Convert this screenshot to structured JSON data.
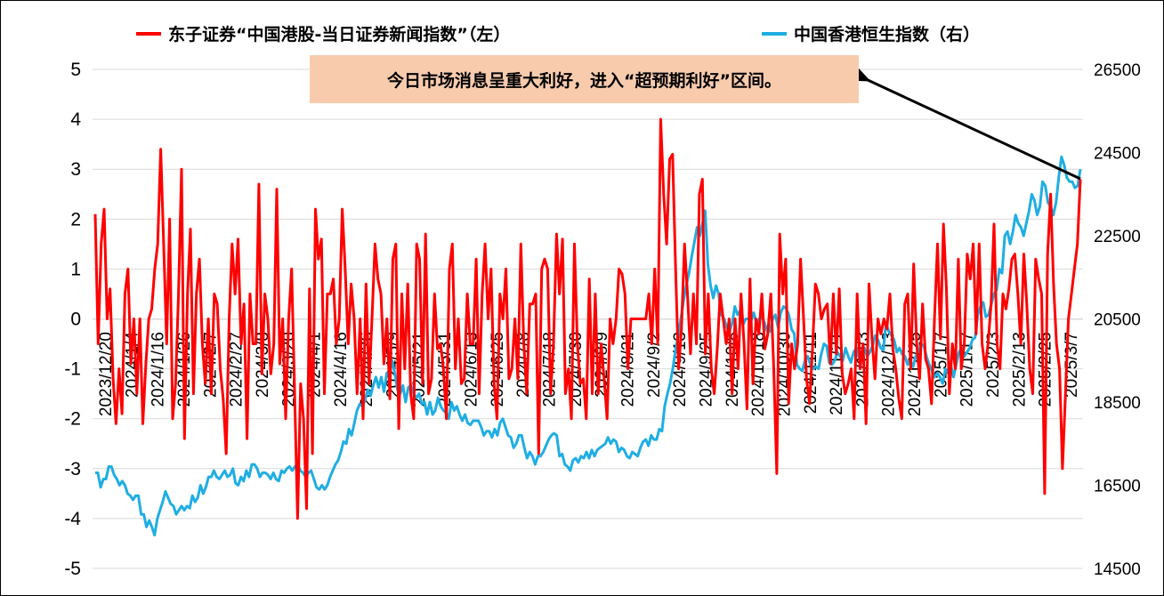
{
  "chart_data": {
    "type": "line",
    "title": "",
    "legend_position": "top",
    "grid": true,
    "x_tick_labels": [
      "2023/12/20",
      "2024/1/4",
      "2024/1/16",
      "2024/1/26",
      "2024/2/7",
      "2024/2/27",
      "2024/3/8",
      "2024/3/20",
      "2024/4/1",
      "2024/4/16",
      "2024/4/26",
      "2024/5/9",
      "2024/5/21",
      "2024/5/31",
      "2024/6/13",
      "2024/6/25",
      "2024/7/8",
      "2024/7/18",
      "2024/7/30",
      "2024/8/9",
      "2024/8/21",
      "2024/9/2",
      "2024/9/13",
      "2024/9/25",
      "2024/10/8",
      "2024/10/18",
      "2024/10/30",
      "2024/11/11",
      "2024/11/21",
      "2024/12/3",
      "2024/12/13",
      "2024/12/25",
      "2025/1/7",
      "2025/1/17",
      "2025/2/3",
      "2025/2/13",
      "2025/2/25",
      "2025/3/7"
    ],
    "left_axis": {
      "ylim": [
        -5,
        5
      ],
      "ticks": [
        5,
        4,
        3,
        2,
        1,
        0,
        -1,
        -2,
        -3,
        -4,
        -5
      ]
    },
    "right_axis": {
      "ylim": [
        14500,
        26500
      ],
      "ticks": [
        26500,
        24500,
        22500,
        20500,
        18500,
        16500,
        14500
      ]
    },
    "series": [
      {
        "name": "东子证券“中国港股-当日证券新闻指数”（左）",
        "axis": "left",
        "color": "#ff0000",
        "values": [
          2.1,
          -0.5,
          1.5,
          2.2,
          0,
          0.6,
          -1.2,
          -2.1,
          -1.0,
          -1.9,
          0.5,
          1.0,
          -0.9,
          0,
          -1.5,
          0,
          -2.1,
          -0.9,
          0,
          0.2,
          1.0,
          1.5,
          3.4,
          1.5,
          -0.5,
          2.0,
          -2.0,
          -1.3,
          0.5,
          3.0,
          -2.4,
          0.5,
          1.8,
          -1.5,
          0.5,
          1.2,
          -0.5,
          -1.3,
          0,
          -1.5,
          0.5,
          0.3,
          -1.0,
          -1.6,
          -2.7,
          0,
          1.5,
          0.5,
          1.6,
          -0.5,
          0.3,
          -2.4,
          0.5,
          -0.5,
          -0.5,
          2.7,
          -1.1,
          0.5,
          0,
          -1.1,
          -0.5,
          2.6,
          -0.9,
          0,
          -2.0,
          0,
          1.0,
          -1.5,
          -4.0,
          -1.3,
          -2.0,
          -3.8,
          0.6,
          -2.7,
          2.2,
          1.2,
          1.6,
          -1.5,
          0.5,
          0.5,
          0.8,
          -0.5,
          0,
          2.2,
          1.0,
          -0.5,
          0.7,
          0,
          -1.5,
          0,
          -2.0,
          0.7,
          -1.3,
          0,
          1.5,
          0.8,
          0.5,
          -0.9,
          0,
          -1.6,
          1.2,
          1.5,
          -2.2,
          0.5,
          -1.0,
          0.7,
          -1.5,
          -2.0,
          1.5,
          1.2,
          -1.3,
          1.7,
          -1.5,
          -1.2,
          0.5,
          -0.6,
          -0.5,
          -1.0,
          -2.0,
          1.0,
          1.5,
          -1.0,
          0,
          -1.3,
          -1.2,
          0.5,
          -0.5,
          -0.5,
          1.2,
          -1.5,
          0.5,
          1.5,
          0,
          1.0,
          -1.3,
          -2.0,
          0.5,
          0,
          1.0,
          -1.2,
          -1.0,
          0,
          -1.2,
          1.5,
          -0.5,
          -1.5,
          0.3,
          0.3,
          0.5,
          -2.7,
          1.0,
          1.2,
          1.0,
          -1.5,
          -0.5,
          1.7,
          0.5,
          1.6,
          -1.5,
          -1.0,
          -2.0,
          1.5,
          -0.5,
          -1.3,
          -1.2,
          -2.0,
          0.8,
          -1.5,
          0.5,
          -1.5,
          -0.5,
          -1.2,
          -2.0,
          0,
          -0.5,
          0,
          1.0,
          0.9,
          0.5,
          -1.0,
          0,
          0,
          0,
          0,
          0,
          0,
          0.5,
          -0.5,
          1.0,
          -0.5,
          4.0,
          2.5,
          1.5,
          3.2,
          3.3,
          1.0,
          -1.0,
          -0.2,
          1.5,
          0.5,
          -0.7,
          0.5,
          -0.5,
          2.5,
          2.8,
          -0.7,
          0.5,
          -1.0,
          -1.5,
          -0.6,
          0.5,
          0,
          -0.5,
          0,
          -1.5,
          0,
          -1.0,
          0.5,
          -0.5,
          -1.8,
          0.8,
          -1.3,
          0,
          -0.3,
          0.5,
          -0.6,
          -0.3,
          0.5,
          -1.0,
          -3.1,
          1.7,
          0.5,
          1.2,
          -1.7,
          -0.5,
          -1.0,
          -0.5,
          1.2,
          0,
          -1.2,
          -1.7,
          -0.6,
          0.7,
          0.5,
          0,
          0.2,
          0.3,
          -0.9,
          0.5,
          -0.7,
          0.6,
          -1.1,
          -1.5,
          -1.3,
          -1.0,
          -2.0,
          0.5,
          -1.0,
          -0.5,
          -2.1,
          0.7,
          -0.4,
          -1.2,
          0,
          -0.3,
          0,
          -0.2,
          0.5,
          -0.6,
          -1.0,
          -1.6,
          -2.0,
          0.3,
          0.5,
          -1.0,
          1.1,
          -0.5,
          -1.2,
          0.3,
          -0.8,
          -1.0,
          -1.7,
          0,
          1.5,
          -0.4,
          1.9,
          0.6,
          -1.5,
          -0.5,
          -1.0,
          1.2,
          -1.0,
          -0.5,
          1.3,
          0.8,
          1.5,
          -0.3,
          1.5,
          -0.5,
          -1.0,
          -0.5,
          0.3,
          1.9,
          -0.5,
          -1.0,
          0.5,
          0.2,
          0.6,
          1.2,
          1.3,
          0.5,
          -0.5,
          1.3,
          0.3,
          -1.0,
          -1.5,
          1.2,
          0.8,
          0.5,
          -3.5,
          1.3,
          2.5,
          0.7,
          -0.5,
          -1.0,
          -3.0,
          -1.5,
          0,
          0.5,
          1.0,
          1.5,
          2.8
        ]
      },
      {
        "name": "中国香港恒生指数（右）",
        "axis": "right",
        "color": "#1faee3",
        "values": [
          16800,
          16800,
          16450,
          16650,
          16650,
          16950,
          16950,
          16750,
          16650,
          16500,
          16600,
          16500,
          16300,
          16250,
          16150,
          16250,
          16250,
          15800,
          15800,
          15500,
          15650,
          15500,
          15300,
          15700,
          15900,
          16100,
          16350,
          16200,
          16050,
          16000,
          15800,
          15900,
          16000,
          15900,
          16000,
          15950,
          16250,
          16100,
          16200,
          16500,
          16300,
          16450,
          16700,
          16700,
          16850,
          16700,
          16650,
          16750,
          16850,
          16700,
          16750,
          16900,
          16550,
          16500,
          16700,
          16600,
          16850,
          16700,
          17000,
          17000,
          16900,
          16700,
          16800,
          16800,
          16750,
          16650,
          16800,
          16650,
          16600,
          16850,
          16800,
          16900,
          16950,
          16850,
          16950,
          17000,
          16850,
          16800,
          16700,
          16800,
          16850,
          16650,
          16450,
          16400,
          16500,
          16400,
          16500,
          16700,
          16850,
          17000,
          17100,
          17300,
          17550,
          17500,
          17850,
          17700,
          18000,
          18300,
          18450,
          18400,
          18550,
          18800,
          18650,
          18900,
          19100,
          18850,
          19100,
          18750,
          19200,
          19150,
          19500,
          19200,
          18800,
          18700,
          18900,
          18500,
          18850,
          18900,
          18700,
          18600,
          18700,
          18450,
          18500,
          18200,
          18500,
          18200,
          18300,
          18600,
          18400,
          18300,
          18250,
          18100,
          18500,
          18300,
          18400,
          18200,
          18050,
          18200,
          18000,
          17950,
          18050,
          18050,
          18050,
          17900,
          17700,
          17800,
          17800,
          17650,
          17850,
          17700,
          18000,
          18100,
          17900,
          17700,
          17650,
          17400,
          17500,
          17700,
          17700,
          17400,
          17150,
          17300,
          17200,
          17000,
          17200,
          17200,
          17300,
          17450,
          17600,
          17700,
          17750,
          17700,
          17200,
          17250,
          17000,
          16950,
          16850,
          17100,
          17150,
          17050,
          17200,
          17150,
          17300,
          17150,
          17350,
          17200,
          17350,
          17400,
          17450,
          17500,
          17650,
          17500,
          17600,
          17550,
          17300,
          17400,
          17350,
          17200,
          17150,
          17300,
          17250,
          17200,
          17400,
          17550,
          17600,
          17450,
          17700,
          17600,
          17600,
          17850,
          17800,
          18400,
          18700,
          18950,
          19300,
          19750,
          20100,
          20500,
          20950,
          21300,
          21600,
          22000,
          22350,
          22700,
          22500,
          22800,
          23100,
          21800,
          21300,
          21000,
          21300,
          21100,
          20600,
          20500,
          20300,
          20200,
          20400,
          20800,
          20600,
          20700,
          20350,
          20500,
          20500,
          20450,
          20650,
          20400,
          20500,
          20550,
          20400,
          20200,
          20200,
          20500,
          20600,
          20300,
          20650,
          20800,
          20750,
          20600,
          20250,
          20150,
          19400,
          19300,
          19250,
          19500,
          19600,
          19400,
          19300,
          19350,
          19300,
          19650,
          19900,
          19850,
          19450,
          19400,
          19500,
          19700,
          19600,
          19500,
          19800,
          19600,
          19450,
          19700,
          19800,
          19550,
          19700,
          19800,
          19600,
          19700,
          19850,
          20100,
          20000,
          19800,
          19750,
          20400,
          20200,
          20100,
          20000,
          19700,
          19800,
          19650,
          19600,
          19400,
          19500,
          19350,
          19600,
          19700,
          19900,
          19850,
          19600,
          19400,
          19250,
          19100,
          19200,
          19100,
          18950,
          19300,
          19200,
          19400,
          19100,
          19400,
          19700,
          19800,
          19600,
          19700,
          19800,
          20000,
          20050,
          20600,
          20800,
          20900,
          20550,
          20600,
          20850,
          21100,
          21200,
          21700,
          21600,
          22500,
          22600,
          22300,
          22600,
          23000,
          22800,
          22700,
          22500,
          22800,
          23100,
          23500,
          23350,
          23000,
          23200,
          23800,
          23700,
          23300,
          23200,
          23000,
          23300,
          23900,
          24400,
          24200,
          23900,
          23800,
          23800,
          23650,
          23700,
          24100
        ]
      }
    ]
  },
  "annotation": {
    "text": "今日市场消息呈重大利好，进入“超预期利好”区间。"
  }
}
